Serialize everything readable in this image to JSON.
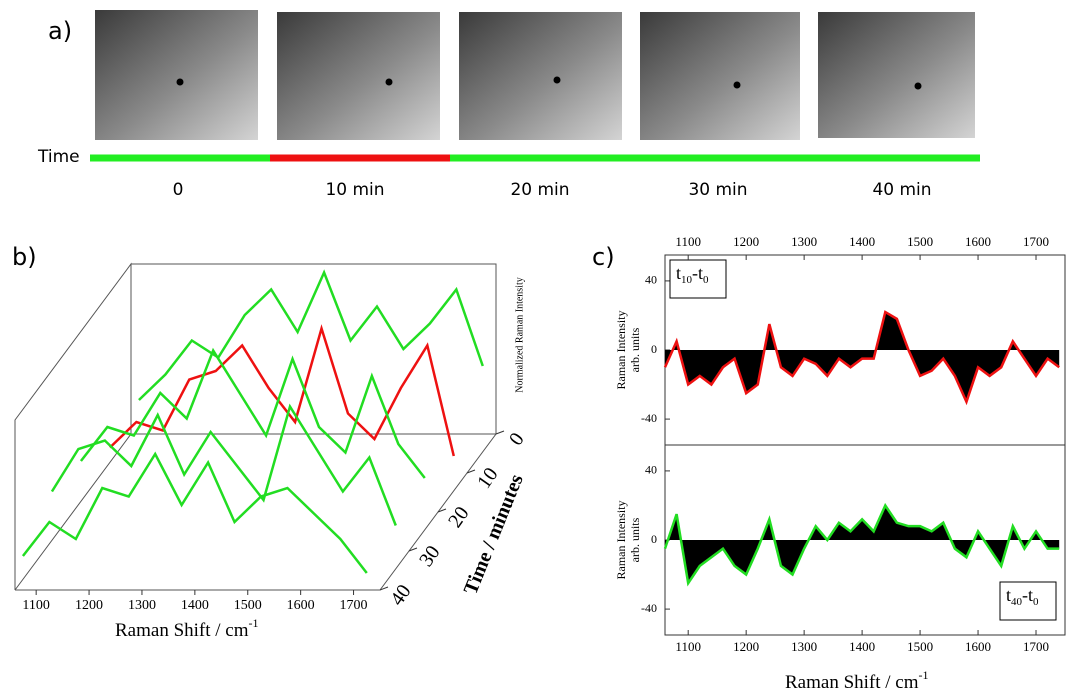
{
  "panel_a": {
    "label": "a)",
    "time_label": "Time",
    "times": [
      "0",
      "10 min",
      "20 min",
      "30 min",
      "40 min"
    ]
  },
  "chart_data": [
    {
      "type": "waterfall",
      "label": "b)",
      "x_label": "Raman Shift /  cm",
      "x_label_sup": "-1",
      "y_label": "Normalized Raman Intensity",
      "z_label": "Time / minutes",
      "xlim": [
        1060,
        1750
      ],
      "xticks": [
        1100,
        1200,
        1300,
        1400,
        1500,
        1600,
        1700
      ],
      "zticks": [
        0,
        10,
        20,
        30,
        40
      ],
      "x": [
        1075,
        1125,
        1175,
        1225,
        1275,
        1325,
        1375,
        1425,
        1475,
        1525,
        1575,
        1625,
        1675,
        1725
      ],
      "series": [
        {
          "z": 0,
          "color": "#22dd22",
          "values": [
            0.2,
            0.35,
            0.55,
            0.45,
            0.7,
            0.85,
            0.6,
            0.95,
            0.55,
            0.75,
            0.5,
            0.65,
            0.85,
            0.4
          ]
        },
        {
          "z": 10,
          "color": "#ee1111",
          "values": [
            0.15,
            0.3,
            0.25,
            0.55,
            0.6,
            0.75,
            0.5,
            0.3,
            0.85,
            0.35,
            0.2,
            0.5,
            0.75,
            0.1
          ]
        },
        {
          "z": 20,
          "color": "#22dd22",
          "values": [
            0.3,
            0.5,
            0.45,
            0.7,
            0.55,
            0.95,
            0.7,
            0.45,
            0.9,
            0.5,
            0.35,
            0.8,
            0.4,
            0.2
          ]
        },
        {
          "z": 30,
          "color": "#22dd22",
          "values": [
            0.35,
            0.6,
            0.65,
            0.5,
            0.8,
            0.45,
            0.7,
            0.5,
            0.3,
            0.85,
            0.6,
            0.35,
            0.55,
            0.15
          ]
        },
        {
          "z": 40,
          "color": "#22dd22",
          "values": [
            0.2,
            0.4,
            0.3,
            0.6,
            0.55,
            0.8,
            0.5,
            0.75,
            0.4,
            0.55,
            0.6,
            0.45,
            0.3,
            0.1
          ]
        }
      ]
    },
    {
      "type": "area",
      "label": "c)",
      "x_label": "Raman Shift /  cm",
      "x_label_sup": "-1",
      "y_label": "Raman Intensity",
      "y_label_2": "arb. units",
      "xlim": [
        1060,
        1750
      ],
      "xticks": [
        1100,
        1200,
        1300,
        1400,
        1500,
        1600,
        1700
      ],
      "ylim": [
        -55,
        55
      ],
      "yticks": [
        -40,
        0,
        40
      ],
      "x": [
        1060,
        1080,
        1100,
        1120,
        1140,
        1160,
        1180,
        1200,
        1220,
        1240,
        1260,
        1280,
        1300,
        1320,
        1340,
        1360,
        1380,
        1400,
        1420,
        1440,
        1460,
        1480,
        1500,
        1520,
        1540,
        1560,
        1580,
        1600,
        1620,
        1640,
        1660,
        1680,
        1700,
        1720,
        1740
      ],
      "panels": [
        {
          "tag": [
            "t",
            "10",
            "-t",
            "0"
          ],
          "color": "#ee1111",
          "values": [
            -10,
            5,
            -20,
            -15,
            -20,
            -10,
            -5,
            -25,
            -20,
            15,
            -10,
            -15,
            -5,
            -8,
            -15,
            -5,
            -10,
            -5,
            -5,
            22,
            18,
            0,
            -15,
            -12,
            -5,
            -15,
            -30,
            -10,
            -15,
            -10,
            5,
            -5,
            -15,
            -5,
            -10
          ]
        },
        {
          "tag": [
            "t",
            "40",
            "-t",
            "0"
          ],
          "color": "#22dd22",
          "values": [
            -5,
            15,
            -25,
            -15,
            -10,
            -5,
            -15,
            -20,
            -5,
            12,
            -15,
            -20,
            -5,
            8,
            0,
            10,
            5,
            12,
            5,
            20,
            10,
            8,
            8,
            5,
            10,
            -5,
            -10,
            5,
            -5,
            -15,
            8,
            -5,
            5,
            -5,
            -5
          ]
        }
      ]
    }
  ]
}
